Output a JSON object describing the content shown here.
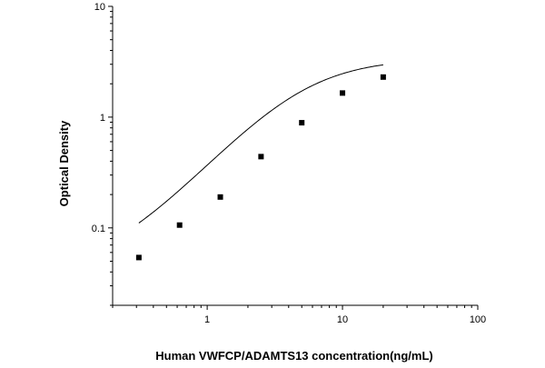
{
  "chart_data": {
    "type": "scatter",
    "title": "",
    "xlabel": "Human VWFCP/ADAMTS13 concentration(ng/mL)",
    "ylabel": "Optical Density",
    "xscale": "log",
    "yscale": "log",
    "xlim": [
      0.2,
      100
    ],
    "ylim": [
      0.02,
      10
    ],
    "x_ticks": [
      {
        "value": 1,
        "label": "1"
      },
      {
        "value": 10,
        "label": "10"
      },
      {
        "value": 100,
        "label": "100"
      }
    ],
    "y_ticks": [
      {
        "value": 0.1,
        "label": "0.1"
      },
      {
        "value": 1,
        "label": "1"
      },
      {
        "value": 10,
        "label": "10"
      }
    ],
    "grid": false,
    "legend": "none",
    "series": [
      {
        "marker": "square",
        "color": "#000000",
        "x": [
          0.3125,
          0.625,
          1.25,
          2.5,
          5,
          10,
          20
        ],
        "y": [
          0.054,
          0.106,
          0.19,
          0.44,
          0.89,
          1.65,
          2.3
        ]
      }
    ],
    "fit_curve": {
      "type": "four-parameter-logistic",
      "color": "#000000",
      "x_range": [
        0.3125,
        20
      ],
      "bottom": 0.0386,
      "top": 3.4,
      "ec50": 5.0,
      "hill": 1.378
    }
  }
}
